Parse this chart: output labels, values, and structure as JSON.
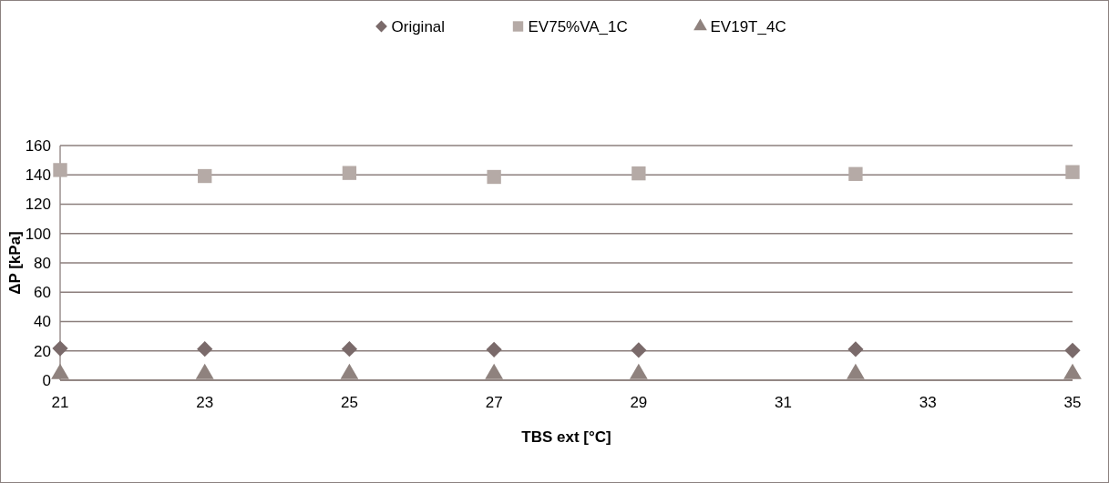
{
  "chart_data": {
    "type": "scatter",
    "xlabel": "TBS ext [°C]",
    "ylabel": "ΔP [kPa]",
    "xlim": [
      21,
      35
    ],
    "xticks": [
      21,
      23,
      25,
      27,
      29,
      31,
      33,
      35
    ],
    "ylim": [
      0,
      160
    ],
    "yticks": [
      0,
      20,
      40,
      60,
      80,
      100,
      120,
      140,
      160
    ],
    "grid": "y",
    "legend": "top",
    "x": [
      21,
      23,
      25,
      27,
      29,
      32,
      35
    ],
    "series": [
      {
        "name": "Original",
        "color": "#7a6a6a",
        "marker": "diamond",
        "values": [
          21.7,
          21.3,
          21.3,
          20.9,
          20.5,
          21.1,
          20.3
        ]
      },
      {
        "name": "EV75%VA_1C",
        "color": "#b5aaa6",
        "marker": "square",
        "values": [
          143.3,
          139.2,
          141.3,
          138.6,
          141,
          140.6,
          141.9
        ]
      },
      {
        "name": "EV19T_4C",
        "color": "#8f827e",
        "marker": "triangle",
        "values": [
          4.3,
          4.3,
          4.3,
          4.3,
          4.3,
          4.3,
          4.3
        ]
      }
    ]
  }
}
